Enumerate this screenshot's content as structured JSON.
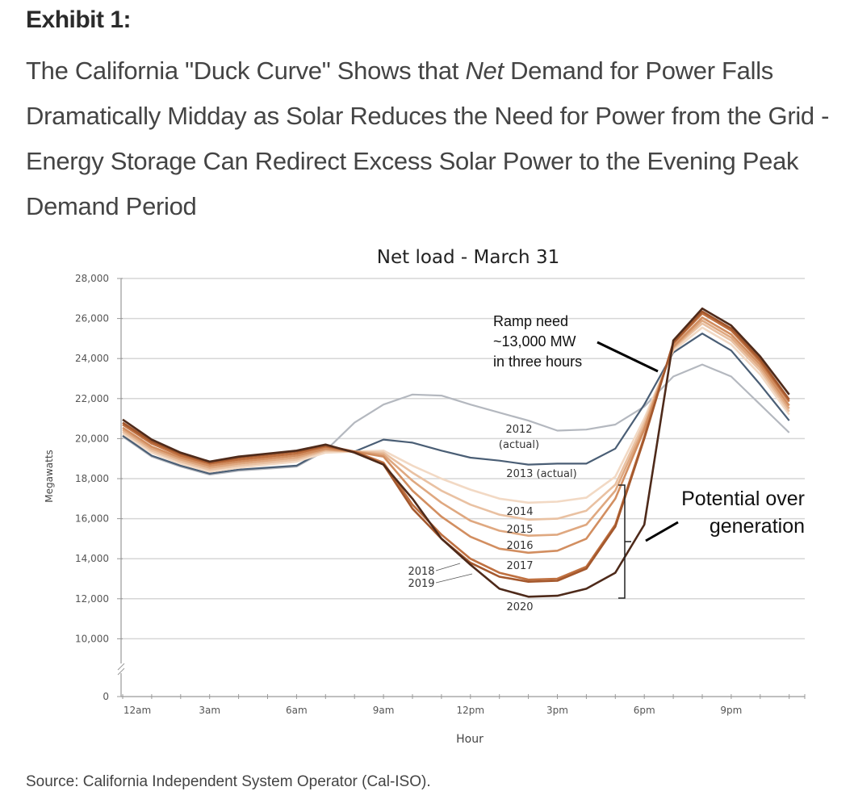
{
  "header": {
    "exhibit": "Exhibit 1:",
    "headline_pre": "The California \"Duck Curve\" Shows that ",
    "headline_em": "Net",
    "headline_post": " Demand for Power Falls Dramatically Midday as Solar Reduces the Need for Power from the Grid - Energy Storage Can Redirect Excess Solar Power to the Evening Peak Demand Period"
  },
  "source": "Source: California Independent System Operator (Cal-ISO).",
  "chart_data": {
    "type": "line",
    "title": "Net load - March 31",
    "xlabel": "Hour",
    "ylabel": "Megawatts",
    "x": [
      0,
      1,
      2,
      3,
      4,
      5,
      6,
      7,
      8,
      9,
      10,
      11,
      12,
      13,
      14,
      15,
      16,
      17,
      18,
      19,
      20,
      21,
      22,
      23
    ],
    "x_ticks": [
      0,
      3,
      6,
      9,
      12,
      15,
      18,
      21
    ],
    "x_tick_labels": [
      "12am",
      "3am",
      "6am",
      "9am",
      "12pm",
      "3pm",
      "6pm",
      "9pm"
    ],
    "y_ticks": [
      0,
      10000,
      12000,
      14000,
      16000,
      18000,
      20000,
      22000,
      24000,
      26000,
      28000
    ],
    "y_tick_labels": [
      "0",
      "10,000",
      "12,000",
      "14,000",
      "16,000",
      "18,000",
      "20,000",
      "22,000",
      "24,000",
      "26,000",
      "28,000"
    ],
    "ylim": [
      10000,
      28000
    ],
    "y_axis_break": true,
    "grid": true,
    "series": [
      {
        "name": "2012 (actual)",
        "label_lines": [
          "2012",
          "(actual)"
        ],
        "color": "#b4b8bf",
        "values": [
          20100,
          19100,
          18600,
          18200,
          18400,
          18500,
          18600,
          19400,
          20800,
          21700,
          22200,
          22150,
          21700,
          21300,
          20900,
          20400,
          20450,
          20700,
          21600,
          23100,
          23700,
          23100,
          21700,
          20300
        ]
      },
      {
        "name": "2013 (actual)",
        "label_lines": [
          "2013 (actual)"
        ],
        "color": "#4a5e75",
        "values": [
          20150,
          19150,
          18650,
          18250,
          18450,
          18550,
          18650,
          19450,
          19350,
          19950,
          19800,
          19400,
          19050,
          18900,
          18700,
          18750,
          18750,
          19500,
          21700,
          24300,
          25250,
          24400,
          22700,
          20900
        ]
      },
      {
        "name": "2014",
        "label_lines": [
          "2014"
        ],
        "color": "#f2d9c4",
        "values": [
          20250,
          19300,
          18750,
          18350,
          18550,
          18700,
          18850,
          19300,
          19350,
          19400,
          18650,
          18000,
          17450,
          17000,
          16800,
          16850,
          17050,
          18100,
          21000,
          24400,
          25550,
          24700,
          23200,
          21200
        ]
      },
      {
        "name": "2015",
        "label_lines": [
          "2015"
        ],
        "color": "#e9c1a2",
        "values": [
          20350,
          19400,
          18850,
          18450,
          18650,
          18800,
          18950,
          19400,
          19350,
          19300,
          18300,
          17400,
          16700,
          16200,
          15950,
          16000,
          16400,
          17700,
          20800,
          24500,
          25750,
          24900,
          23400,
          21350
        ]
      },
      {
        "name": "2016",
        "label_lines": [
          "2016"
        ],
        "color": "#dfa880",
        "values": [
          20450,
          19500,
          18950,
          18550,
          18750,
          18900,
          19050,
          19450,
          19350,
          19200,
          17900,
          16800,
          15900,
          15400,
          15150,
          15200,
          15700,
          17400,
          20600,
          24550,
          25900,
          25050,
          23550,
          21500
        ]
      },
      {
        "name": "2017",
        "label_lines": [
          "2017"
        ],
        "color": "#d28e60",
        "values": [
          20550,
          19600,
          19050,
          18650,
          18850,
          19000,
          19150,
          19500,
          19350,
          19100,
          17400,
          16100,
          15100,
          14500,
          14300,
          14400,
          15000,
          17000,
          20450,
          24600,
          26050,
          25200,
          23700,
          21650
        ]
      },
      {
        "name": "2018",
        "label_lines": [
          "2018"
        ],
        "color": "#bf7040",
        "values": [
          20700,
          19750,
          19150,
          18750,
          18950,
          19100,
          19250,
          19600,
          19350,
          18800,
          16700,
          15200,
          14000,
          13300,
          12950,
          13000,
          13600,
          15700,
          20100,
          24750,
          26250,
          25400,
          23850,
          21850
        ]
      },
      {
        "name": "2019",
        "label_lines": [
          "2019"
        ],
        "color": "#a4582d",
        "values": [
          20800,
          19850,
          19250,
          18800,
          19050,
          19200,
          19350,
          19650,
          19350,
          18700,
          16500,
          15000,
          13800,
          13100,
          12850,
          12900,
          13500,
          15600,
          20000,
          24800,
          26350,
          25500,
          23950,
          21950
        ]
      },
      {
        "name": "2020",
        "label_lines": [
          "2020"
        ],
        "color": "#4e2a1a",
        "values": [
          20950,
          19950,
          19300,
          18850,
          19100,
          19250,
          19400,
          19700,
          19300,
          18700,
          17000,
          15000,
          13700,
          12500,
          12100,
          12150,
          12500,
          13300,
          15700,
          24900,
          26500,
          25650,
          24100,
          22200
        ]
      }
    ],
    "annotations": [
      {
        "text_lines": [
          "Ramp need",
          "~13,000 MW",
          "in three hours"
        ]
      },
      {
        "text_lines": [
          "Potential over",
          "generation"
        ]
      }
    ]
  }
}
